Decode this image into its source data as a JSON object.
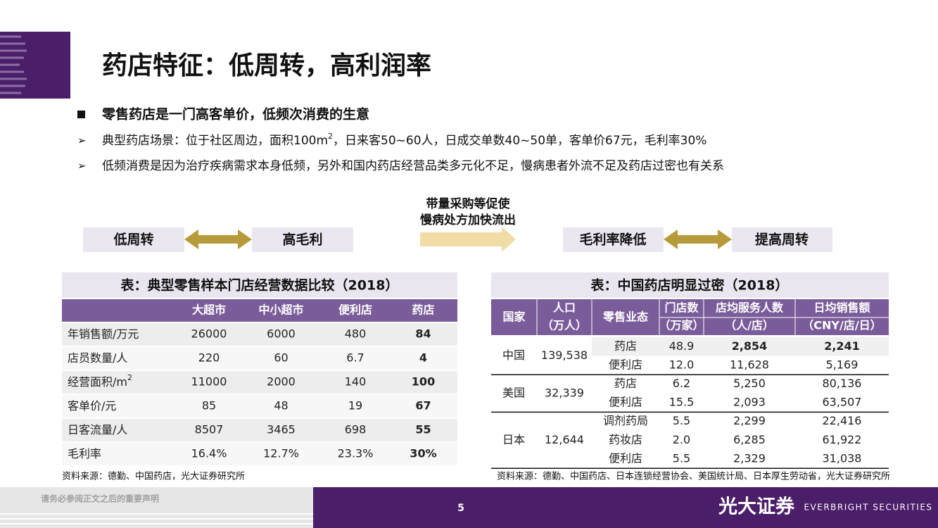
{
  "title": "药店特征：低周转，高利润率",
  "bullets": {
    "main": "零售药店是一门高客单价，低频次消费的生意",
    "items": [
      {
        "before": "典型药店场景：位于社区周边，面积100m",
        "sup": "2",
        "after": "，日来客50~60人，日成交单数40~50单，客单价67元，毛利率30%"
      },
      {
        "before": "低频消费是因为治疗疾病需求本身低频，另外和国内药店经营品类多元化不足，慢病患者外流不足及药店过密也有关系"
      }
    ]
  },
  "diagram": {
    "left": [
      "低周转",
      "高毛利"
    ],
    "middle": [
      "带量采购等促使",
      "慢病处方加快流出"
    ],
    "right": [
      "毛利率降低",
      "提高周转"
    ]
  },
  "table1": {
    "caption": "表：典型零售样本门店经营数据比较（2018）",
    "headers": [
      "大超市",
      "中小超市",
      "便利店",
      "药店"
    ],
    "rows": [
      {
        "label": "年销售额/万元",
        "cells": [
          "26000",
          "6000",
          "480",
          "84"
        ]
      },
      {
        "label": "店员数量/人",
        "cells": [
          "220",
          "60",
          "6.7",
          "4"
        ]
      },
      {
        "label": "经营面积/m",
        "sup": "2",
        "cells": [
          "11000",
          "2000",
          "140",
          "100"
        ]
      },
      {
        "label": "客单价/元",
        "cells": [
          "85",
          "48",
          "19",
          "67"
        ]
      },
      {
        "label": "日客流量/人",
        "cells": [
          "8507",
          "3465",
          "698",
          "55"
        ]
      },
      {
        "label": "毛利率",
        "cells": [
          "16.4%",
          "12.7%",
          "23.3%",
          "30%"
        ]
      }
    ],
    "source": "资料来源：德勤、中国药店，光大证券研究所"
  },
  "table2": {
    "caption": "表：中国药店明显过密（2018）",
    "headers": [
      [
        "国家"
      ],
      [
        "人口",
        "（万人）"
      ],
      [
        "零售业态"
      ],
      [
        "门店数",
        "（万家）"
      ],
      [
        "店均服务人数",
        "（人/店）"
      ],
      [
        "日均销售额",
        "（CNY/店/日）"
      ]
    ],
    "groups": [
      {
        "country": "中国",
        "population": "139,538",
        "rows": [
          [
            "药店",
            "48.9",
            "2,854",
            "2,241"
          ],
          [
            "便利店",
            "12.0",
            "11,628",
            "5,169"
          ]
        ]
      },
      {
        "country": "美国",
        "population": "32,339",
        "rows": [
          [
            "药店",
            "6.2",
            "5,250",
            "80,136"
          ],
          [
            "便利店",
            "15.5",
            "2,093",
            "63,507"
          ]
        ]
      },
      {
        "country": "日本",
        "population": "12,644",
        "rows": [
          [
            "调剂药局",
            "5.5",
            "2,299",
            "22,416"
          ],
          [
            "药妆店",
            "2.0",
            "6,285",
            "61,922"
          ],
          [
            "便利店",
            "5.5",
            "2,329",
            "31,038"
          ]
        ]
      }
    ],
    "source": "资料来源：德勤、中国药店、日本连锁经营协会、美国统计局、日本厚生劳动省，光大证券研究所"
  },
  "footer": {
    "disclaimer": "请务必参阅正文之后的重要声明",
    "page": "5",
    "brand": "光大证券",
    "brand_en": "EVERBRIGHT SECURITIES"
  }
}
